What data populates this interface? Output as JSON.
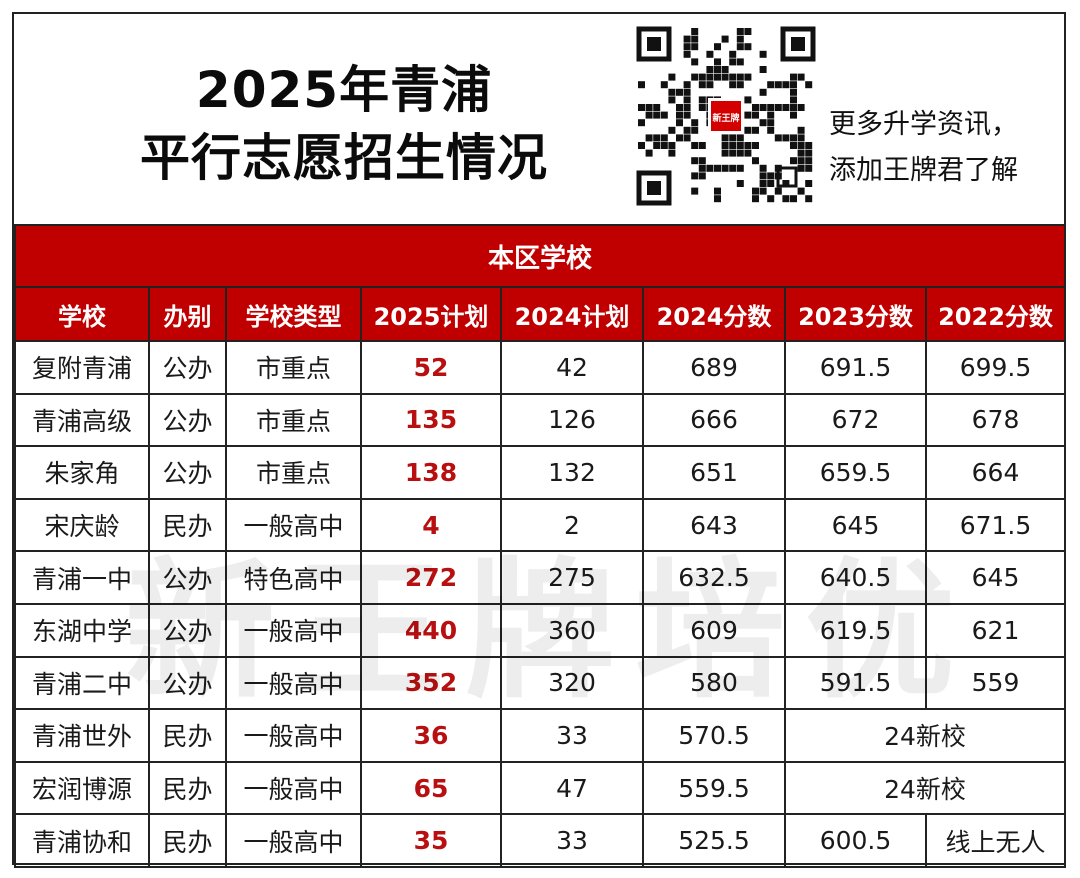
{
  "title": {
    "line1": "2025年青浦",
    "line2": "平行志愿招生情况"
  },
  "promo": {
    "line1": "更多升学资讯，",
    "line2": "添加王牌君了解"
  },
  "qr_logo_text": "新王牌",
  "section_title": "本区学校",
  "columns": [
    "学校",
    "办别",
    "学校类型",
    "2025计划",
    "2024计划",
    "2024分数",
    "2023分数",
    "2022分数"
  ],
  "rows": [
    {
      "school": "复附青浦",
      "kind": "公办",
      "type": "市重点",
      "plan2025": "52",
      "plan2024": "42",
      "score2024": "689",
      "score2023": "691.5",
      "score2022": "699.5"
    },
    {
      "school": "青浦高级",
      "kind": "公办",
      "type": "市重点",
      "plan2025": "135",
      "plan2024": "126",
      "score2024": "666",
      "score2023": "672",
      "score2022": "678"
    },
    {
      "school": "朱家角",
      "kind": "公办",
      "type": "市重点",
      "plan2025": "138",
      "plan2024": "132",
      "score2024": "651",
      "score2023": "659.5",
      "score2022": "664"
    },
    {
      "school": "宋庆龄",
      "kind": "民办",
      "type": "一般高中",
      "plan2025": "4",
      "plan2024": "2",
      "score2024": "643",
      "score2023": "645",
      "score2022": "671.5"
    },
    {
      "school": "青浦一中",
      "kind": "公办",
      "type": "特色高中",
      "plan2025": "272",
      "plan2024": "275",
      "score2024": "632.5",
      "score2023": "640.5",
      "score2022": "645"
    },
    {
      "school": "东湖中学",
      "kind": "公办",
      "type": "一般高中",
      "plan2025": "440",
      "plan2024": "360",
      "score2024": "609",
      "score2023": "619.5",
      "score2022": "621"
    },
    {
      "school": "青浦二中",
      "kind": "公办",
      "type": "一般高中",
      "plan2025": "352",
      "plan2024": "320",
      "score2024": "580",
      "score2023": "591.5",
      "score2022": "559"
    },
    {
      "school": "青浦世外",
      "kind": "民办",
      "type": "一般高中",
      "plan2025": "36",
      "plan2024": "33",
      "score2024": "570.5",
      "merged": "24新校"
    },
    {
      "school": "宏润博源",
      "kind": "民办",
      "type": "一般高中",
      "plan2025": "65",
      "plan2024": "47",
      "score2024": "559.5",
      "merged": "24新校"
    },
    {
      "school": "青浦协和",
      "kind": "民办",
      "type": "一般高中",
      "plan2025": "35",
      "plan2024": "33",
      "score2024": "525.5",
      "score2023": "600.5",
      "score2022": "线上无人"
    }
  ],
  "watermark": "新王牌培优",
  "colors": {
    "accent_red": "#c00000",
    "plan_red": "#b81010"
  }
}
